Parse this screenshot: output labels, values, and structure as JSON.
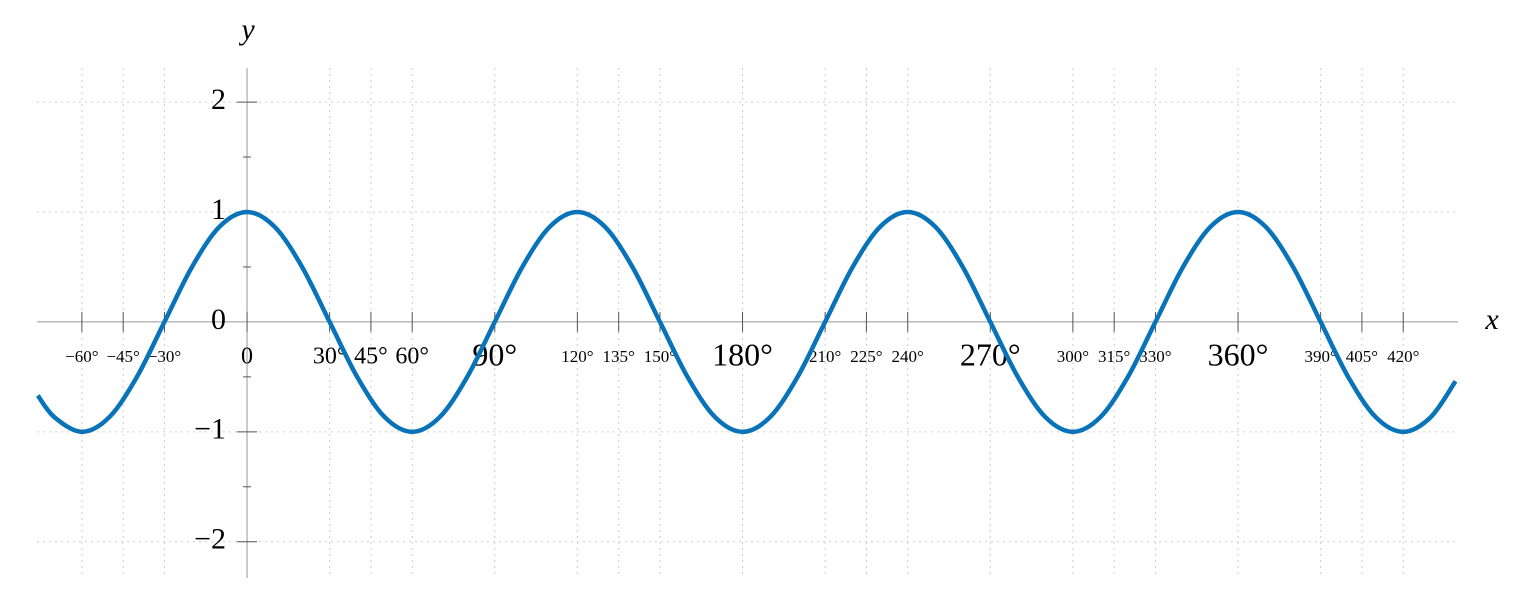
{
  "chart_data": {
    "type": "line",
    "x_label": "x",
    "y_label": "y",
    "x": [
      -76,
      -70,
      -60,
      -50,
      -40,
      -30,
      -20,
      -10,
      0,
      10,
      20,
      30,
      40,
      50,
      60,
      70,
      80,
      90,
      100,
      110,
      120,
      130,
      140,
      150,
      160,
      170,
      180,
      190,
      200,
      210,
      220,
      230,
      240,
      250,
      260,
      270,
      280,
      290,
      300,
      310,
      320,
      330,
      340,
      350,
      360,
      370,
      380,
      390,
      400,
      410,
      420,
      430,
      439
    ],
    "series": [
      {
        "color": "#0873b9",
        "values": [
          -0.67,
          -0.866,
          -1,
          -0.866,
          -0.5,
          0,
          0.5,
          0.866,
          1,
          0.866,
          0.5,
          0,
          -0.5,
          -0.866,
          -1,
          -0.866,
          -0.5,
          0,
          0.5,
          0.866,
          1,
          0.866,
          0.5,
          0,
          -0.5,
          -0.866,
          -1,
          -0.866,
          -0.5,
          0,
          0.5,
          0.866,
          1,
          0.866,
          0.5,
          0,
          -0.5,
          -0.866,
          -1,
          -0.866,
          -0.5,
          0,
          0.5,
          0.866,
          1,
          0.866,
          0.5,
          0,
          -0.5,
          -0.866,
          -1,
          -0.866,
          -0.54
        ]
      }
    ],
    "xlim": [
      -76.3,
      439.9
    ],
    "ylim": [
      -2.33,
      2.31
    ],
    "xticks": [
      {
        "value": -60,
        "label": "−60°"
      },
      {
        "value": -45,
        "label": "−45°"
      },
      {
        "value": -30,
        "label": "−30°"
      },
      0,
      {
        "value": 30,
        "label": "30°"
      },
      {
        "value": 45,
        "label": "45°"
      },
      {
        "value": 60,
        "label": "60°"
      },
      {
        "value": 90,
        "label": "90°"
      },
      {
        "value": 120,
        "label": "120°"
      },
      {
        "value": 135,
        "label": "135°"
      },
      {
        "value": 150,
        "label": "150°"
      },
      {
        "value": 180,
        "label": "180°"
      },
      {
        "value": 210,
        "label": "210°"
      },
      {
        "value": 225,
        "label": "225°"
      },
      {
        "value": 240,
        "label": "240°"
      },
      {
        "value": 270,
        "label": "270°"
      },
      {
        "value": 300,
        "label": "300°"
      },
      {
        "value": 315,
        "label": "315°"
      },
      {
        "value": 330,
        "label": "330°"
      },
      {
        "value": 360,
        "label": "360°"
      },
      {
        "value": 390,
        "label": "390°"
      },
      {
        "value": 405,
        "label": "405°"
      },
      {
        "value": 420,
        "label": "420°"
      }
    ],
    "yticks": [
      {
        "value": -2,
        "label": "−2"
      },
      {
        "value": -1,
        "label": "−1"
      },
      0,
      1,
      2
    ],
    "yminor_ticks": [
      -1.5,
      -0.5,
      0.5,
      1.5
    ],
    "grid": true
  }
}
